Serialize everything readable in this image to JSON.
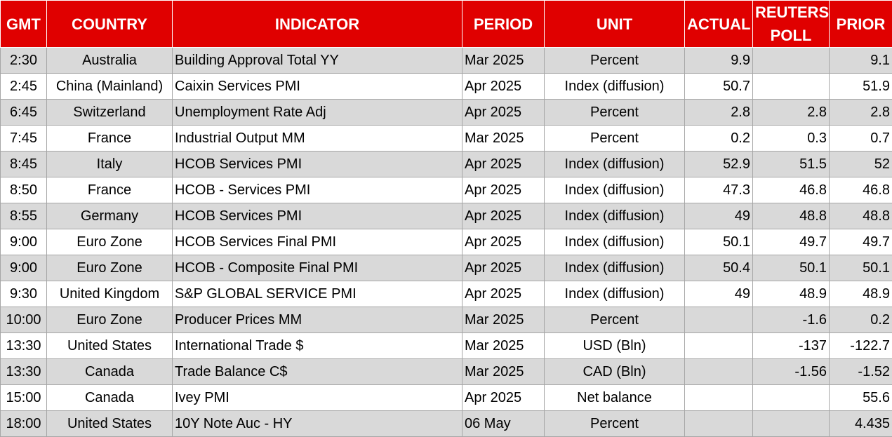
{
  "table": {
    "columns": [
      "GMT",
      "COUNTRY",
      "INDICATOR",
      "PERIOD",
      "UNIT",
      "ACTUAL",
      "REUTERS POLL",
      "PRIOR"
    ],
    "rows": [
      [
        "2:30",
        "Australia",
        "Building Approval Total YY",
        "Mar 2025",
        "Percent",
        "9.9",
        null,
        "9.1"
      ],
      [
        "2:45",
        "China (Mainland)",
        "Caixin Services PMI",
        "Apr 2025",
        "Index (diffusion)",
        "50.7",
        null,
        "51.9"
      ],
      [
        "6:45",
        "Switzerland",
        "Unemployment Rate Adj",
        "Apr 2025",
        "Percent",
        "2.8",
        "2.8",
        "2.8"
      ],
      [
        "7:45",
        "France",
        "Industrial Output MM",
        "Mar 2025",
        "Percent",
        "0.2",
        "0.3",
        "0.7"
      ],
      [
        "8:45",
        "Italy",
        "HCOB Services PMI",
        "Apr 2025",
        "Index (diffusion)",
        "52.9",
        "51.5",
        "52"
      ],
      [
        "8:50",
        "France",
        "HCOB - Services PMI",
        "Apr 2025",
        "Index (diffusion)",
        "47.3",
        "46.8",
        "46.8"
      ],
      [
        "8:55",
        "Germany",
        "HCOB Services PMI",
        "Apr 2025",
        "Index (diffusion)",
        "49",
        "48.8",
        "48.8"
      ],
      [
        "9:00",
        "Euro Zone",
        "HCOB Services Final PMI",
        "Apr 2025",
        "Index (diffusion)",
        "50.1",
        "49.7",
        "49.7"
      ],
      [
        "9:00",
        "Euro Zone",
        "HCOB - Composite Final PMI",
        "Apr 2025",
        "Index (diffusion)",
        "50.4",
        "50.1",
        "50.1"
      ],
      [
        "9:30",
        "United Kingdom",
        "S&P GLOBAL SERVICE PMI",
        "Apr 2025",
        "Index (diffusion)",
        "49",
        "48.9",
        "48.9"
      ],
      [
        "10:00",
        "Euro Zone",
        "Producer Prices MM",
        "Mar 2025",
        "Percent",
        null,
        "-1.6",
        "0.2"
      ],
      [
        "13:30",
        "United States",
        "International Trade $",
        "Mar 2025",
        "USD (Bln)",
        null,
        "-137",
        "-122.7"
      ],
      [
        "13:30",
        "Canada",
        "Trade Balance C$",
        "Mar 2025",
        "CAD (Bln)",
        null,
        "-1.56",
        "-1.52"
      ],
      [
        "15:00",
        "Canada",
        "Ivey PMI",
        "Apr 2025",
        "Net balance",
        null,
        null,
        "55.6"
      ],
      [
        "18:00",
        "United States",
        "10Y Note Auc - HY",
        "06 May",
        "Percent",
        null,
        null,
        "4.435"
      ]
    ]
  }
}
